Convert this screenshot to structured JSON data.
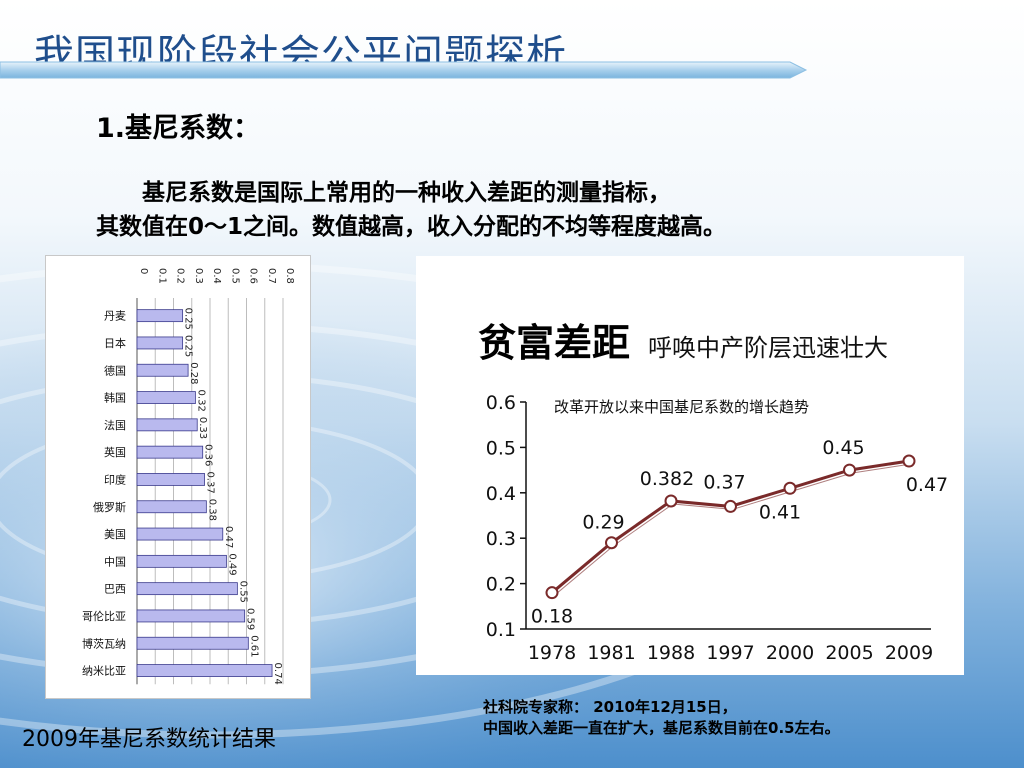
{
  "slide": {
    "title": "我国现阶段社会公平问题探析",
    "section_heading": "1.基尼系数：",
    "desc_line1": "基尼系数是国际上常用的一种收入差距的测量指标，",
    "desc_line2": "其数值在0～1之间。数值越高，收入分配的不均等程度越高。",
    "caption_left": "2009年基尼系数统计结果",
    "note_line1": "社科院专家称： 2010年12月15日，",
    "note_line2": "中国收入差距一直在扩大，基尼系数目前在0.5左右。"
  },
  "colors": {
    "title": "#1f4e8c",
    "bar_fill": "#b9b9ee",
    "bar_stroke": "#3a3a8c",
    "line": "#7a2a2a",
    "headline": "#000000"
  },
  "chart_data": [
    {
      "type": "bar",
      "orientation": "horizontal",
      "categories": [
        "丹麦",
        "日本",
        "德国",
        "韩国",
        "法国",
        "英国",
        "印度",
        "俄罗斯",
        "美国",
        "中国",
        "巴西",
        "哥伦比亚",
        "博茨瓦纳",
        "纳米比亚"
      ],
      "values": [
        0.25,
        0.25,
        0.28,
        0.32,
        0.33,
        0.36,
        0.37,
        0.38,
        0.47,
        0.49,
        0.55,
        0.59,
        0.61,
        0.74
      ],
      "value_labels": [
        "0.25",
        "0.25",
        "0.28",
        "0.32",
        "0.33",
        "0.36",
        "0.37",
        "0.38",
        "0.47",
        "0.49",
        "0.55",
        "0.59",
        "0.61",
        "0.74"
      ],
      "axis_ticks": [
        "0",
        "0.1",
        "0.2",
        "0.3",
        "0.4",
        "0.5",
        "0.6",
        "0.7",
        "0.8"
      ],
      "xlim": [
        0,
        0.8
      ],
      "grid": true
    },
    {
      "type": "line",
      "headline": "贫富差距",
      "subheadline": "呼唤中产阶层迅速壮大",
      "title": "改革开放以来中国基尼系数的增长趋势",
      "x": [
        "1978",
        "1981",
        "1988",
        "1997",
        "2000",
        "2005",
        "2009"
      ],
      "values": [
        0.18,
        0.29,
        0.382,
        0.37,
        0.41,
        0.45,
        0.47
      ],
      "point_labels": [
        "0.18",
        "0.29",
        "0.382",
        "0.37",
        "0.41",
        "0.45",
        "0.47"
      ],
      "y_ticks": [
        "0.1",
        "0.2",
        "0.3",
        "0.4",
        "0.5",
        "0.6"
      ],
      "ylim": [
        0.1,
        0.6
      ],
      "grid": false
    }
  ]
}
